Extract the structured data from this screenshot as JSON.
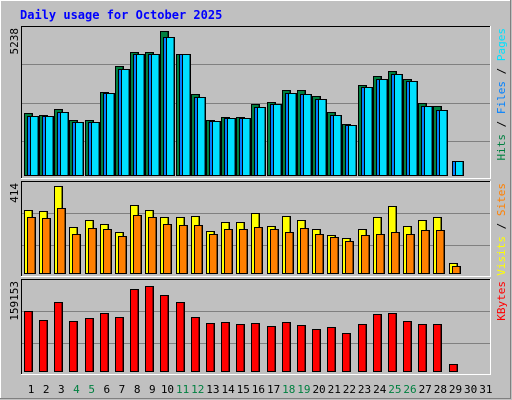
{
  "chart_data": {
    "type": "bar",
    "title": "Daily usage for October 2025",
    "categories": [
      "1",
      "2",
      "3",
      "4",
      "5",
      "6",
      "7",
      "8",
      "9",
      "10",
      "11",
      "12",
      "13",
      "14",
      "15",
      "16",
      "17",
      "18",
      "19",
      "20",
      "21",
      "22",
      "23",
      "24",
      "25",
      "26",
      "27",
      "28",
      "29",
      "30",
      "31"
    ],
    "weekend_days": [
      4,
      5,
      11,
      12,
      18,
      19,
      25,
      26
    ],
    "panels": [
      {
        "max_label": "5238",
        "ylim": [
          0,
          5238
        ],
        "legend": [
          "Pages",
          "Files",
          "Hits"
        ],
        "series": [
          {
            "name": "Hits",
            "color": "#008040",
            "values": [
              2280,
              2210,
              2410,
              2020,
              2020,
              3050,
              3980,
              4490,
              4480,
              5230,
              4420,
              2970,
              2040,
              2130,
              2130,
              2590,
              2680,
              3100,
              3090,
              2890,
              2310,
              1880,
              3300,
              3600,
              3790,
              3520,
              2630,
              2520,
              0,
              0,
              0
            ]
          },
          {
            "name": "Files",
            "color": "#0080ff",
            "values": [
              2180,
              2150,
              2330,
              1960,
              1950,
              2990,
              3870,
              4420,
              4400,
              5020,
              4390,
              2850,
              1990,
              2090,
              2080,
              2500,
              2590,
              3010,
              2980,
              2780,
              2210,
              1860,
              3200,
              3510,
              3670,
              3430,
              2540,
              2400,
              540,
              0,
              0
            ]
          },
          {
            "name": "Pages",
            "color": "#00e0ff",
            "values": [
              2180,
              2150,
              2330,
              1960,
              1950,
              2990,
              3870,
              4420,
              4400,
              5020,
              4390,
              2850,
              1990,
              2090,
              2080,
              2500,
              2590,
              3010,
              2980,
              2780,
              2210,
              1860,
              3200,
              3510,
              3670,
              3430,
              2540,
              2400,
              540,
              0,
              0
            ]
          }
        ]
      },
      {
        "max_label": "414",
        "ylim": [
          0,
          414
        ],
        "legend": [
          "Sites",
          "Visits"
        ],
        "series": [
          {
            "name": "Visits",
            "color": "#ffff00",
            "values": [
              303,
              298,
              414,
              223,
              255,
              237,
              196,
              323,
              300,
              270,
              270,
              275,
              200,
              244,
              244,
              286,
              228,
              274,
              256,
              211,
              184,
              169,
              212,
              266,
              322,
              224,
              254,
              270,
              52,
              0,
              0
            ]
          },
          {
            "name": "Sites",
            "color": "#ff8000",
            "values": [
              268,
              262,
              309,
              187,
              217,
              210,
              178,
              277,
              270,
              235,
              232,
              229,
              186,
              212,
              210,
              222,
              213,
              197,
              215,
              190,
              174,
              153,
              185,
              188,
              197,
              189,
              206,
              206,
              38,
              0,
              0
            ]
          }
        ]
      },
      {
        "max_label": "159153",
        "ylim": [
          0,
          159153
        ],
        "legend": [
          "KBytes"
        ],
        "series": [
          {
            "name": "KBytes",
            "color": "#ff0000",
            "values": [
              110000,
              94000,
              126000,
              92000,
              98000,
              106000,
              99000,
              151000,
              155000,
              140000,
              126000,
              99000,
              89000,
              90000,
              86000,
              89000,
              84000,
              90000,
              85000,
              78000,
              81000,
              71000,
              87000,
              104000,
              107000,
              92000,
              87000,
              87000,
              15000,
              0,
              0
            ]
          }
        ]
      }
    ]
  }
}
